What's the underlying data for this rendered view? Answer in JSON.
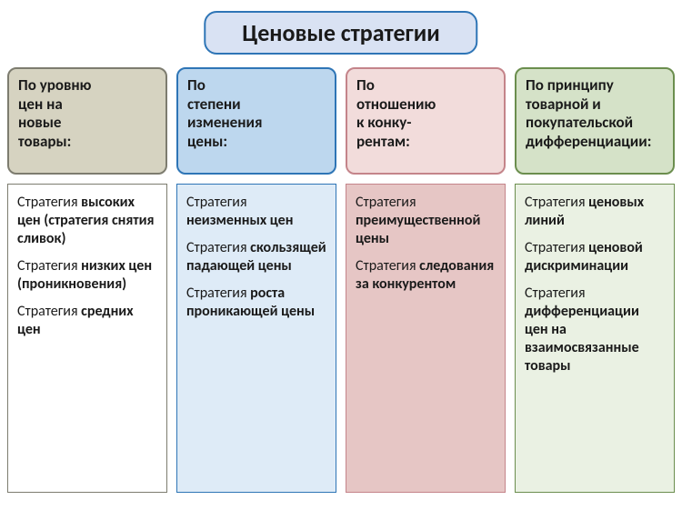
{
  "title": {
    "text": "Ценовые стратегии",
    "fontsize": 26,
    "bg": "#d9e2f3",
    "border": "#2e75b6"
  },
  "header_fontsize": 17,
  "body_fontsize": 16,
  "strategy_lead": "Стратегия",
  "columns": [
    {
      "header_lines": [
        "По уровню",
        "цен на",
        "новые",
        "товары",
        ":"
      ],
      "header_bg": "#d6d3c1",
      "header_border": "#7d7c6f",
      "body_bg": "#ffffff",
      "body_border": "#7d7c6f",
      "strategies": [
        {
          "emph": "высоких цен (стратегия снятия сливок)"
        },
        {
          "emph": "низких цен (проникновения)"
        },
        {
          "emph": "средних цен"
        }
      ]
    },
    {
      "header_lines": [
        "По",
        "степени",
        "изменения",
        "цены:"
      ],
      "header_bg": "#bdd7ee",
      "header_border": "#2e75b6",
      "body_bg": "#deebf7",
      "body_border": "#2e75b6",
      "strategies": [
        {
          "emph": "неизменных цен"
        },
        {
          "emph": "скользящей падающей цены"
        },
        {
          "emph": "роста проникающей цены"
        }
      ]
    },
    {
      "header_lines": [
        "По",
        "отношению",
        "к конку-",
        "рентам:"
      ],
      "header_bg": "#f2dcdb",
      "header_border": "#c4848a",
      "body_bg": "#e6c6c5",
      "body_border": "#c4848a",
      "strategies": [
        {
          "emph": "преимущественной цены"
        },
        {
          "emph": "следования за конкурентом"
        }
      ]
    },
    {
      "header_lines": [
        "По принципу",
        "товарной и",
        "покупательской",
        "дифференциации:"
      ],
      "header_bg": "#d5e2c8",
      "header_border": "#6b8e4e",
      "body_bg": "#eaf1e3",
      "body_border": "#6b8e4e",
      "strategies": [
        {
          "emph": "ценовых линий"
        },
        {
          "emph": "ценовой дискриминации"
        },
        {
          "emph": "дифференциации цен на взаимосвязанные товары"
        }
      ]
    }
  ]
}
